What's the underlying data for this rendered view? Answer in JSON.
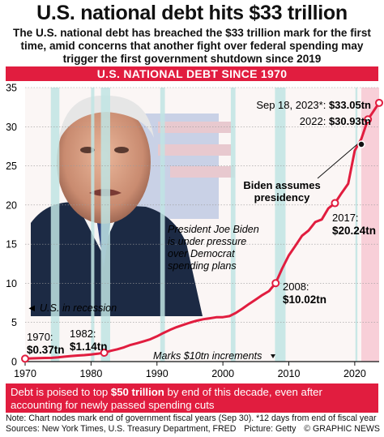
{
  "header": {
    "title": "U.S. national debt hits $33 trillion",
    "subtitle": "The U.S. national debt has breached the $33 trillion mark for the first time, amid concerns that another fight over federal spending may trigger the first government shutdown since 2019",
    "band": "U.S. NATIONAL DEBT SINCE 1970"
  },
  "annotations": {
    "recession": "◄ U.S. in recession",
    "biden_line1": "Biden assumes",
    "biden_line2": "presidency",
    "quote_line1": "President Joe Biden",
    "quote_line2": "is under pressure",
    "quote_line3": "over Democrat",
    "quote_line4": "spending plans",
    "marks": "Marks $10tn increments"
  },
  "footer": {
    "band_pre": "Debt is poised to top ",
    "band_bold": "$50 trillion",
    "band_post": " by end of this decade, even after accounting for newly passed spending cuts",
    "note": "Note: Chart nodes mark end of government fiscal years (Sep 30). *12 days from end of fiscal year",
    "sources": "Sources: New York Times, U.S. Treasury Department, FRED",
    "picture": "Picture: Getty",
    "credit": "© GRAPHIC NEWS"
  },
  "colors": {
    "accent": "#e11d3f",
    "recession": "#bfe4e3",
    "shade": "#f7c8d2"
  },
  "chart_data": {
    "type": "line",
    "xlim": [
      1970,
      2023.7
    ],
    "ylim": [
      0,
      35
    ],
    "x_ticks": [
      "1970",
      "1980",
      "1990",
      "2000",
      "2010",
      "2020"
    ],
    "y_ticks": [
      "0",
      "5",
      "10",
      "15",
      "20",
      "25",
      "30",
      "35"
    ],
    "shaded_from": 2021,
    "recessions": [
      [
        1973.9,
        1975.2
      ],
      [
        1980.0,
        1980.5
      ],
      [
        1981.5,
        1982.9
      ],
      [
        1990.5,
        1991.2
      ],
      [
        2001.2,
        2001.9
      ],
      [
        2007.9,
        2009.5
      ],
      [
        2020.1,
        2020.4
      ]
    ],
    "series": [
      {
        "x": [
          1970,
          1971,
          1972,
          1973,
          1974,
          1975,
          1976,
          1977,
          1978,
          1979,
          1980,
          1981,
          1982,
          1983,
          1984,
          1985,
          1986,
          1987,
          1988,
          1989,
          1990,
          1991,
          1992,
          1993,
          1994,
          1995,
          1996,
          1997,
          1998,
          1999,
          2000,
          2001,
          2002,
          2003,
          2004,
          2005,
          2006,
          2007,
          2008,
          2009,
          2010,
          2011,
          2012,
          2013,
          2014,
          2015,
          2016,
          2017,
          2018,
          2019,
          2020,
          2021,
          2022,
          2023.7
        ],
        "y": [
          0.37,
          0.41,
          0.44,
          0.47,
          0.48,
          0.54,
          0.63,
          0.71,
          0.78,
          0.83,
          0.91,
          1.0,
          1.14,
          1.38,
          1.57,
          1.82,
          2.13,
          2.35,
          2.6,
          2.86,
          3.23,
          3.67,
          4.06,
          4.41,
          4.69,
          4.97,
          5.22,
          5.41,
          5.53,
          5.66,
          5.67,
          5.81,
          6.23,
          6.78,
          7.38,
          7.93,
          8.51,
          9.01,
          10.02,
          11.91,
          13.56,
          14.79,
          16.07,
          16.74,
          17.82,
          18.15,
          19.57,
          20.24,
          21.52,
          22.72,
          26.95,
          28.43,
          30.93,
          33.05
        ]
      }
    ],
    "labeled_points": [
      {
        "year": "1970:",
        "value": "$0.37tn",
        "x": 1970,
        "y": 0.37
      },
      {
        "year": "1982:",
        "value": "$1.14tn",
        "x": 1982,
        "y": 1.14
      },
      {
        "year": "2008:",
        "value": "$10.02tn",
        "x": 2008,
        "y": 10.02
      },
      {
        "year": "2017:",
        "value": "$20.24tn",
        "x": 2017,
        "y": 20.24
      },
      {
        "year": "2022:",
        "value": "$30.93tn",
        "x": 2022,
        "y": 30.93
      },
      {
        "year": "Sep 18, 2023*:",
        "value": "$33.05tn",
        "x": 2023.7,
        "y": 33.05
      }
    ],
    "biden_point": {
      "x": 2021,
      "y": 27.75
    }
  }
}
